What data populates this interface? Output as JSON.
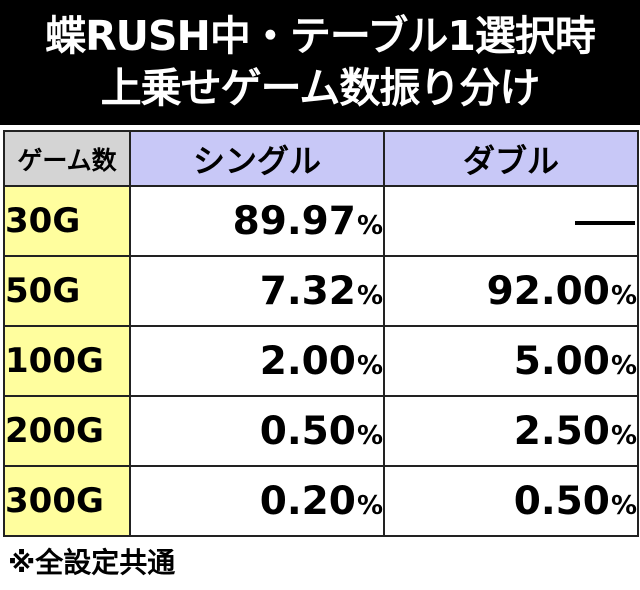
{
  "title": {
    "line1": "蝶RUSH中・テーブル1選択時",
    "line2": "上乗せゲーム数振り分け"
  },
  "table": {
    "corner_label": "ゲーム数",
    "columns": [
      "シングル",
      "ダブル"
    ],
    "unit": "%",
    "rows": [
      {
        "label": "30G",
        "single": "89.97",
        "double": "—"
      },
      {
        "label": "50G",
        "single": "7.32",
        "double": "92.00"
      },
      {
        "label": "100G",
        "single": "2.00",
        "double": "5.00"
      },
      {
        "label": "200G",
        "single": "0.50",
        "double": "2.50"
      },
      {
        "label": "300G",
        "single": "0.20",
        "double": "0.50"
      }
    ]
  },
  "note": "※全設定共通",
  "colors": {
    "title_bg": "#000000",
    "header_label_bg": "#d4d4d4",
    "header_col_bg": "#c8c8f7",
    "row_label_bg": "#fffe9e"
  }
}
